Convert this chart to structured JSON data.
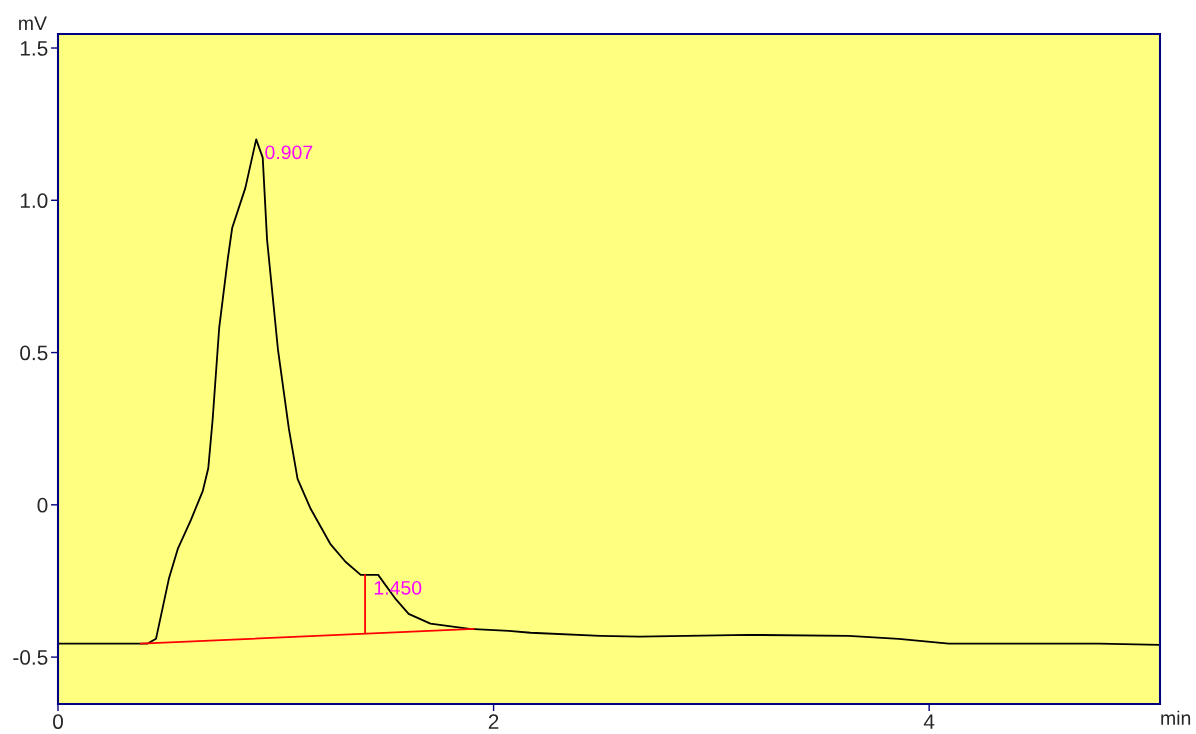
{
  "chart_data": {
    "type": "line",
    "xlabel": "min",
    "ylabel": "mV",
    "xlim": [
      0,
      5.06
    ],
    "ylim": [
      -0.654,
      1.546
    ],
    "xticks": [
      0,
      2,
      4
    ],
    "yticks": [
      -0.5,
      0,
      0.5,
      {
        "value": 1,
        "label": "1.0"
      },
      1.5
    ],
    "grid": false,
    "series": [
      {
        "color": "#000000",
        "x": [
          0,
          0.41,
          0.45,
          0.51,
          0.55,
          0.61,
          0.665,
          0.69,
          0.71,
          0.74,
          0.78,
          0.8,
          0.86,
          0.91,
          0.94,
          0.96,
          1.01,
          1.06,
          1.1,
          1.16,
          1.25,
          1.32,
          1.39,
          1.47,
          1.55,
          1.61,
          1.71,
          1.89,
          2.07,
          2.17,
          2.49,
          2.67,
          3.17,
          3.63,
          3.86,
          4.09,
          4.78,
          5.06
        ],
        "values": [
          -0.456,
          -0.456,
          -0.44,
          -0.24,
          -0.145,
          -0.05,
          0.046,
          0.12,
          0.28,
          0.58,
          0.81,
          0.91,
          1.04,
          1.2,
          1.14,
          0.87,
          0.51,
          0.25,
          0.085,
          -0.013,
          -0.128,
          -0.187,
          -0.23,
          -0.23,
          -0.309,
          -0.358,
          -0.39,
          -0.407,
          -0.414,
          -0.42,
          -0.43,
          -0.433,
          -0.427,
          -0.43,
          -0.44,
          -0.456,
          -0.456,
          -0.46
        ]
      },
      {
        "color": "#ff0000",
        "x": [
          0.38,
          1.91
        ],
        "values": [
          -0.456,
          -0.407
        ]
      },
      {
        "color": "#ff0000",
        "x": [
          1.41,
          1.41
        ],
        "values": [
          -0.42,
          -0.23
        ]
      }
    ],
    "annotations": [
      {
        "text": "0.907",
        "x": 0.91,
        "y": 1.2
      },
      {
        "text": "1.450",
        "x": 1.41,
        "y": -0.23
      }
    ]
  }
}
